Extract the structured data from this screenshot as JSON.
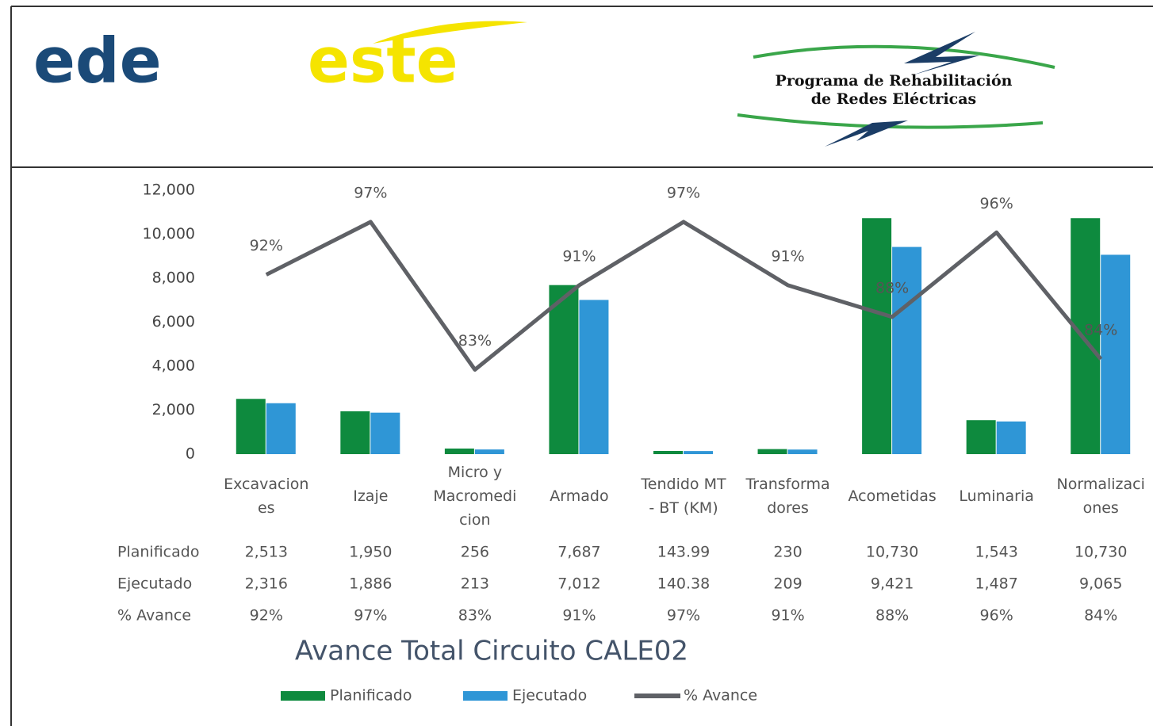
{
  "header": {
    "logo_left": "ede",
    "logo_right": "este",
    "program_line1": "Programa de Rehabilitación",
    "program_line2": "de Redes Eléctricas"
  },
  "chart_data": {
    "type": "bar",
    "title": "Avance Total Circuito CALE02",
    "categories": [
      "Excavaciones",
      "Izaje",
      "Micro y Macromedicion",
      "Armado",
      "Tendido MT - BT (KM)",
      "Transformadores",
      "Acometidas",
      "Luminaria",
      "Normalizaciones"
    ],
    "series": [
      {
        "name": "Planificado",
        "color": "#0e8a3e",
        "values": [
          2513,
          1950,
          256,
          7687,
          143.99,
          230,
          10730,
          1543,
          10730
        ],
        "value_labels": [
          "2,513",
          "1,950",
          "256",
          "7,687",
          "143.99",
          "230",
          "10,730",
          "1,543",
          "10,730"
        ]
      },
      {
        "name": "Ejecutado",
        "color": "#2f96d6",
        "values": [
          2316,
          1886,
          213,
          7012,
          140.38,
          209,
          9421,
          1487,
          9065
        ],
        "value_labels": [
          "2,316",
          "1,886",
          "213",
          "7,012",
          "140.38",
          "209",
          "9,421",
          "1,487",
          "9,065"
        ]
      },
      {
        "name": "% Avance",
        "color": "#5f6166",
        "type": "line",
        "axis": "y2",
        "values": [
          92,
          97,
          83,
          91,
          97,
          91,
          88,
          96,
          84
        ],
        "value_labels": [
          "92%",
          "97%",
          "83%",
          "91%",
          "97%",
          "91%",
          "88%",
          "96%",
          "84%"
        ]
      }
    ],
    "ylim": [
      0,
      12000
    ],
    "yticks": [
      {
        "value": 0,
        "label": "0"
      },
      {
        "value": 2000,
        "label": "2,000"
      },
      {
        "value": 4000,
        "label": "4,000"
      },
      {
        "value": 6000,
        "label": "6,000"
      },
      {
        "value": 8000,
        "label": "8,000"
      },
      {
        "value": 10000,
        "label": "10,000"
      },
      {
        "value": 12000,
        "label": "12,000"
      }
    ],
    "y2lim": [
      75,
      100
    ],
    "grid": false,
    "legend": "bottom"
  }
}
